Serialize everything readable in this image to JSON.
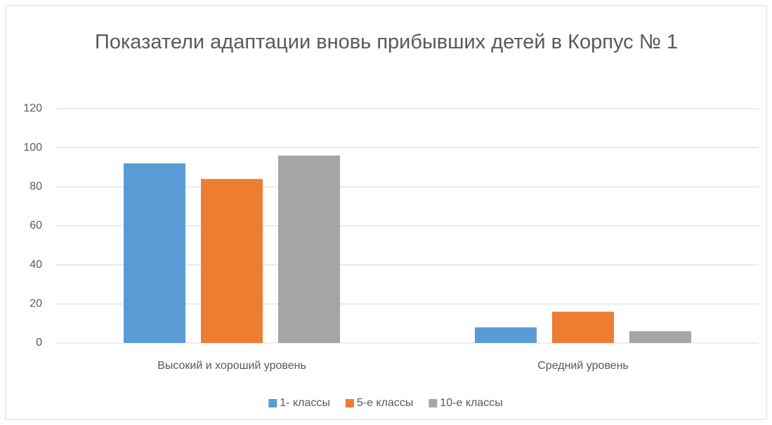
{
  "chart_data": {
    "type": "bar",
    "title": "Показатели адаптации вновь прибывших детей в Корпус № 1",
    "categories": [
      "Высокий и хороший уровень",
      "Средний уровень"
    ],
    "series": [
      {
        "name": "1- классы",
        "color": "#5b9bd5",
        "values": [
          92,
          8
        ]
      },
      {
        "name": "5-е классы",
        "color": "#ed7d31",
        "values": [
          84,
          16
        ]
      },
      {
        "name": "10-е классы",
        "color": "#a5a5a5",
        "values": [
          96,
          6
        ]
      }
    ],
    "ylim": [
      0,
      120
    ],
    "yticks": [
      0,
      20,
      40,
      60,
      80,
      100,
      120
    ],
    "grid": true,
    "legend": "bottom"
  }
}
